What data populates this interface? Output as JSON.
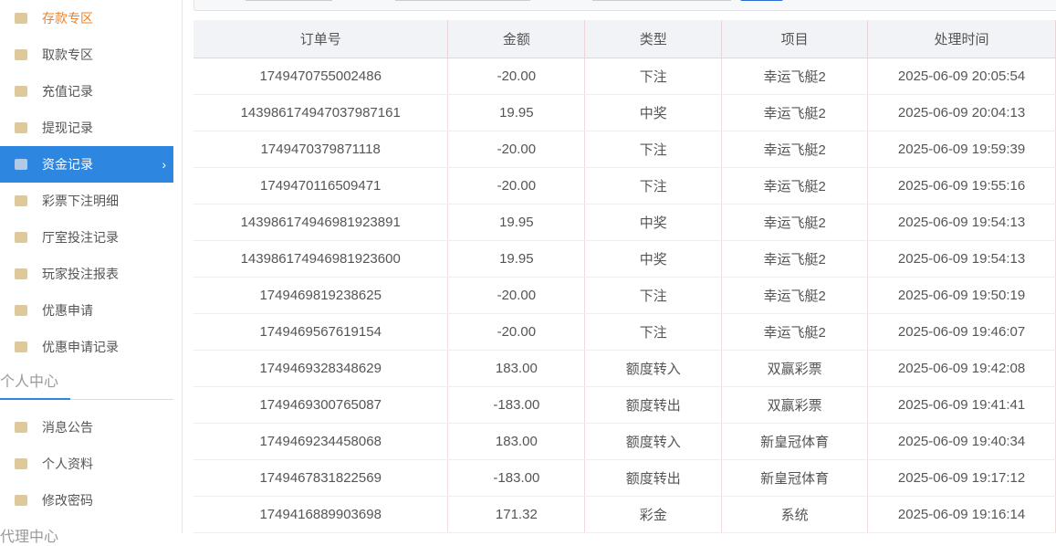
{
  "sidebar": {
    "items": [
      {
        "label": "存款专区",
        "icon": "deposit-icon"
      },
      {
        "label": "取款专区",
        "icon": "withdraw-icon"
      },
      {
        "label": "充值记录",
        "icon": "money-bag-icon"
      },
      {
        "label": "提现记录",
        "icon": "wallet-icon"
      },
      {
        "label": "资金记录",
        "icon": "funds-icon",
        "active": true
      },
      {
        "label": "彩票下注明细",
        "icon": "list-icon"
      },
      {
        "label": "厅室投注记录",
        "icon": "list-icon"
      },
      {
        "label": "玩家投注报表",
        "icon": "chart-icon"
      },
      {
        "label": "优惠申请",
        "icon": "gift-icon"
      },
      {
        "label": "优惠申请记录",
        "icon": "list-icon"
      }
    ],
    "section_personal": "个人中心",
    "personal_items": [
      {
        "label": "消息公告",
        "icon": "bell-icon"
      },
      {
        "label": "个人资料",
        "icon": "user-icon"
      },
      {
        "label": "修改密码",
        "icon": "gear-icon"
      }
    ],
    "section_agent": "代理中心"
  },
  "table": {
    "headers": [
      "订单号",
      "金额",
      "类型",
      "项目",
      "处理时间"
    ],
    "rows": [
      [
        "1749470755002486",
        "-20.00",
        "下注",
        "幸运飞艇2",
        "2025-06-09 20:05:54"
      ],
      [
        "14398617494703798716​1",
        "19.95",
        "中奖",
        "幸运飞艇2",
        "2025-06-09 20:04:13"
      ],
      [
        "1749470379871118",
        "-20.00",
        "下注",
        "幸运飞艇2",
        "2025-06-09 19:59:39"
      ],
      [
        "1749470116509471",
        "-20.00",
        "下注",
        "幸运飞艇2",
        "2025-06-09 19:55:16"
      ],
      [
        "143986174946981923891",
        "19.95",
        "中奖",
        "幸运飞艇2",
        "2025-06-09 19:54:13"
      ],
      [
        "143986174946981923600",
        "19.95",
        "中奖",
        "幸运飞艇2",
        "2025-06-09 19:54:13"
      ],
      [
        "1749469819238625",
        "-20.00",
        "下注",
        "幸运飞艇2",
        "2025-06-09 19:50:19"
      ],
      [
        "1749469567619154",
        "-20.00",
        "下注",
        "幸运飞艇2",
        "2025-06-09 19:46:07"
      ],
      [
        "1749469328348629",
        "183.00",
        "额度转入",
        "双赢彩票",
        "2025-06-09 19:42:08"
      ],
      [
        "1749469300765087",
        "-183.00",
        "额度转出",
        "双赢彩票",
        "2025-06-09 19:41:41"
      ],
      [
        "1749469234458068",
        "183.00",
        "额度转入",
        "新皇冠体育",
        "2025-06-09 19:40:34"
      ],
      [
        "1749467831822569",
        "-183.00",
        "额度转出",
        "新皇冠体育",
        "2025-06-09 19:17:12"
      ],
      [
        "1749416889903698",
        "171.32",
        "彩金",
        "系统",
        "2025-06-09 19:16:14"
      ]
    ]
  },
  "colors": {
    "accent": "#2d86e0",
    "highlight": "#e8842b"
  }
}
